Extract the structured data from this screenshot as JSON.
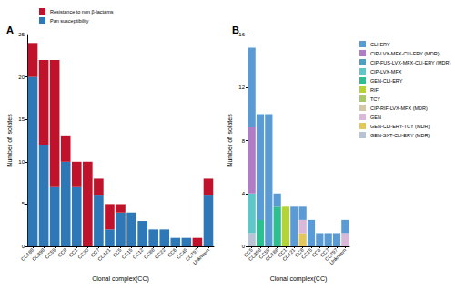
{
  "chart_data": [
    {
      "type": "bar",
      "title": "A",
      "stacked": true,
      "grid": false,
      "legend": "top-left",
      "x_label": "Clonal complex(CC)",
      "y_label": "Number of isolates",
      "categories": [
        "CC188",
        "CC398",
        "CC59",
        "CC8",
        "CC1",
        "CC30",
        "CC7",
        "CC121",
        "CC5",
        "CC15",
        "CC12",
        "CC88",
        "CC22",
        "CC6",
        "CC45",
        "CC797",
        "Unknown"
      ],
      "series": [
        {
          "name": "Pan susceptibility",
          "color": "#2e78b7",
          "values": [
            20,
            12,
            7,
            10,
            7,
            0,
            6,
            2,
            4,
            4,
            3,
            2,
            2,
            1,
            1,
            0,
            6
          ]
        },
        {
          "name": "Resistance to non β-lactams",
          "color": "#c0132b",
          "values": [
            4,
            10,
            15,
            3,
            3,
            10,
            2,
            3,
            1,
            0,
            0,
            0,
            0,
            0,
            0,
            1,
            2
          ]
        }
      ],
      "legend_order": [
        "Resistance to non β-lactams",
        "Pan susceptibility"
      ],
      "ylim": [
        0,
        25
      ],
      "yticks": [
        0,
        5,
        10,
        15,
        20,
        25
      ]
    },
    {
      "type": "bar",
      "title": "B",
      "stacked": true,
      "grid": false,
      "legend": "right",
      "x_label": "Clonal complex(CC)",
      "y_label": "Number of isolates",
      "categories": [
        "CC5",
        "CC398",
        "CC59",
        "CC188",
        "CC1",
        "CC121",
        "CC8",
        "CC15",
        "CC6",
        "CC7",
        "CC797",
        "Unknown"
      ],
      "series": [
        {
          "name": "GEN-SXT-CLI-ERY (MDR)",
          "color": "#b8c4d6",
          "values": [
            1,
            0,
            0,
            0,
            0,
            0,
            0,
            0,
            0,
            0,
            0,
            0
          ]
        },
        {
          "name": "GEN-CLI-ERY-TCY (MDR)",
          "color": "#e2c75a",
          "values": [
            0,
            0,
            0,
            0,
            0,
            0,
            1,
            0,
            0,
            0,
            0,
            0
          ]
        },
        {
          "name": "GEN",
          "color": "#d9b8d8",
          "values": [
            0,
            0,
            0,
            0,
            0,
            0,
            1,
            0,
            0,
            0,
            0,
            1
          ]
        },
        {
          "name": "CIP-RIF-LVX-MFX (MDR)",
          "color": "#d3c9a8",
          "values": [
            0,
            0,
            0,
            0,
            0,
            0,
            0,
            0,
            0,
            0,
            0,
            0
          ]
        },
        {
          "name": "TCY",
          "color": "#a8c86a",
          "values": [
            0,
            0,
            0,
            0,
            0,
            0,
            0,
            0,
            0,
            0,
            0,
            0
          ]
        },
        {
          "name": "RIF",
          "color": "#b5d334",
          "values": [
            0,
            0,
            0,
            0,
            3,
            0,
            0,
            0,
            0,
            0,
            0,
            0
          ]
        },
        {
          "name": "GEN-CLI-ERY",
          "color": "#2dbf8f",
          "values": [
            0,
            2,
            0,
            3,
            0,
            0,
            0,
            0,
            0,
            0,
            0,
            0
          ]
        },
        {
          "name": "CIP-LVX-MFX",
          "color": "#5fc6c9",
          "values": [
            3,
            0,
            0,
            0,
            0,
            0,
            0,
            0,
            0,
            0,
            0,
            0
          ]
        },
        {
          "name": "CIP-FUS-LVX-MFX-CLI-ERY (MDR)",
          "color": "#4f9fc3",
          "values": [
            0,
            0,
            0,
            0,
            0,
            0,
            0,
            0,
            0,
            0,
            0,
            0
          ]
        },
        {
          "name": "CIP-LVX-MFX-CLI-ERY (MDR)",
          "color": "#b07cc6",
          "values": [
            5,
            0,
            0,
            0,
            0,
            0,
            0,
            0,
            0,
            0,
            0,
            0
          ]
        },
        {
          "name": "CLI-ERY",
          "color": "#5b9bd5",
          "values": [
            6,
            8,
            10,
            1,
            0,
            3,
            1,
            2,
            1,
            1,
            1,
            1
          ]
        }
      ],
      "legend_order": [
        "CLI-ERY",
        "CIP-LVX-MFX-CLI-ERY (MDR)",
        "CIP-FUS-LVX-MFX-CLI-ERY (MDR)",
        "CIP-LVX-MFX",
        "GEN-CLI-ERY",
        "RIF",
        "TCY",
        "CIP-RIF-LVX-MFX (MDR)",
        "GEN",
        "GEN-CLI-ERY-TCY (MDR)",
        "GEN-SXT-CLI-ERY (MDR)"
      ],
      "ylim": [
        0,
        16
      ],
      "yticks": [
        0,
        4,
        8,
        12,
        16
      ]
    }
  ]
}
